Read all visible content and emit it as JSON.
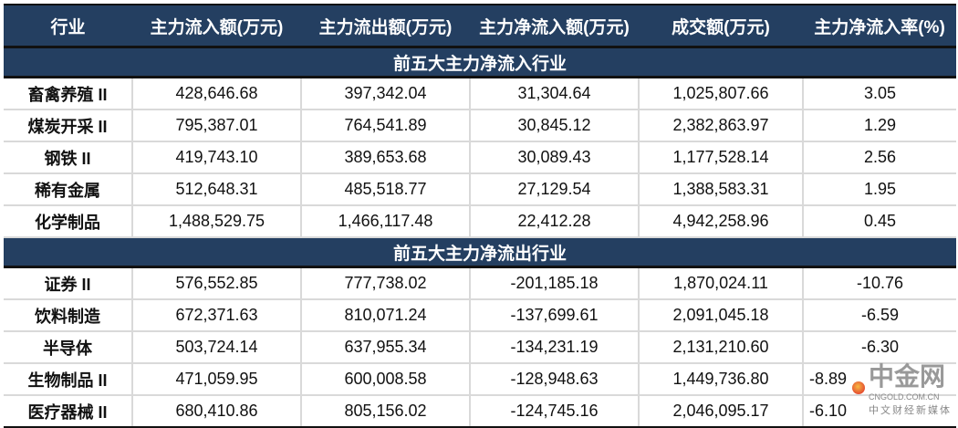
{
  "headers": [
    "行业",
    "主力流入额(万元)",
    "主力流出额(万元)",
    "主力净流入额(万元)",
    "成交额(万元)",
    "主力净流入率(%)"
  ],
  "sections": [
    {
      "title": "前五大主力净流入行业",
      "rows": [
        [
          "畜禽养殖 II",
          "428,646.68",
          "397,342.04",
          "31,304.64",
          "1,025,807.66",
          "3.05"
        ],
        [
          "煤炭开采 II",
          "795,387.01",
          "764,541.89",
          "30,845.12",
          "2,382,863.97",
          "1.29"
        ],
        [
          "钢铁 II",
          "419,743.10",
          "389,653.68",
          "30,089.43",
          "1,177,528.14",
          "2.56"
        ],
        [
          "稀有金属",
          "512,648.31",
          "485,518.77",
          "27,129.54",
          "1,388,583.31",
          "1.95"
        ],
        [
          "化学制品",
          "1,488,529.75",
          "1,466,117.48",
          "22,412.28",
          "4,942,258.96",
          "0.45"
        ]
      ]
    },
    {
      "title": "前五大主力净流出行业",
      "rows": [
        [
          "证券 II",
          "576,552.85",
          "777,738.02",
          "-201,185.18",
          "1,870,024.11",
          "-10.76"
        ],
        [
          "饮料制造",
          "672,371.63",
          "810,071.24",
          "-137,699.61",
          "2,091,045.18",
          "-6.59"
        ],
        [
          "半导体",
          "503,724.14",
          "637,955.34",
          "-134,231.19",
          "2,131,210.60",
          "-6.30"
        ],
        [
          "生物制品 II",
          "471,059.95",
          "600,008.58",
          "-128,948.63",
          "1,449,736.80",
          "-8.89"
        ],
        [
          "医疗器械 II",
          "680,410.86",
          "805,156.02",
          "-124,745.16",
          "2,046,095.17",
          "-6.10"
        ]
      ]
    }
  ],
  "watermark": {
    "brand": "中金网",
    "url": "CNGOLD.COM.CN",
    "tagline": "中文财经新媒体"
  },
  "colors": {
    "header_bg": "#243f61"
  }
}
